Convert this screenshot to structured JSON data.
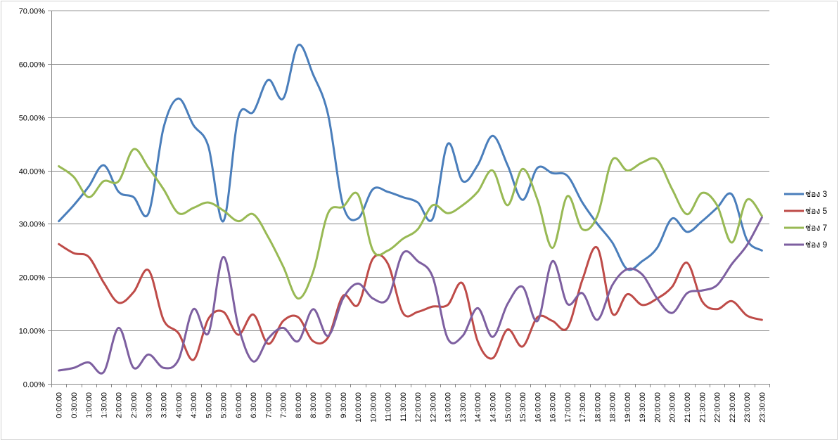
{
  "chart_data": {
    "type": "line",
    "title": "",
    "xlabel": "",
    "ylabel": "",
    "ylim": [
      0,
      0.7
    ],
    "y_ticks": [
      "0.00%",
      "10.00%",
      "20.00%",
      "30.00%",
      "40.00%",
      "50.00%",
      "60.00%",
      "70.00%"
    ],
    "grid": true,
    "legend_position": "right",
    "categories": [
      "0:00:00",
      "0:30:00",
      "1:00:00",
      "1:30:00",
      "2:00:00",
      "2:30:00",
      "3:00:00",
      "3:30:00",
      "4:00:00",
      "4:30:00",
      "5:00:00",
      "5:30:00",
      "6:00:00",
      "6:30:00",
      "7:00:00",
      "7:30:00",
      "8:00:00",
      "8:30:00",
      "9:00:00",
      "9:30:00",
      "10:00:00",
      "10:30:00",
      "11:00:00",
      "11:30:00",
      "12:00:00",
      "12:30:00",
      "13:00:00",
      "13:30:00",
      "14:00:00",
      "14:30:00",
      "15:00:00",
      "15:30:00",
      "16:00:00",
      "16:30:00",
      "17:00:00",
      "17:30:00",
      "18:00:00",
      "18:30:00",
      "19:00:00",
      "19:30:00",
      "20:00:00",
      "20:30:00",
      "21:00:00",
      "21:30:00",
      "22:00:00",
      "22:30:00",
      "23:00:00",
      "23:30:00"
    ],
    "series": [
      {
        "name": "ช่อง 3",
        "color": "#4a7ebb",
        "values": [
          0.305,
          0.335,
          0.37,
          0.41,
          0.36,
          0.35,
          0.32,
          0.48,
          0.535,
          0.485,
          0.445,
          0.305,
          0.5,
          0.51,
          0.57,
          0.535,
          0.635,
          0.58,
          0.505,
          0.335,
          0.31,
          0.365,
          0.36,
          0.35,
          0.34,
          0.31,
          0.45,
          0.38,
          0.41,
          0.465,
          0.41,
          0.345,
          0.405,
          0.395,
          0.39,
          0.34,
          0.3,
          0.265,
          0.215,
          0.23,
          0.255,
          0.31,
          0.285,
          0.305,
          0.33,
          0.355,
          0.27,
          0.25
        ]
      },
      {
        "name": "ช่อง 5",
        "color": "#be4b48",
        "values": [
          0.262,
          0.245,
          0.238,
          0.19,
          0.152,
          0.172,
          0.213,
          0.12,
          0.095,
          0.045,
          0.122,
          0.135,
          0.092,
          0.13,
          0.075,
          0.118,
          0.125,
          0.08,
          0.087,
          0.165,
          0.148,
          0.235,
          0.225,
          0.133,
          0.135,
          0.145,
          0.148,
          0.188,
          0.08,
          0.048,
          0.102,
          0.07,
          0.125,
          0.118,
          0.105,
          0.195,
          0.255,
          0.132,
          0.168,
          0.148,
          0.16,
          0.182,
          0.227,
          0.155,
          0.14,
          0.155,
          0.128,
          0.12
        ]
      },
      {
        "name": "ช่อง 7",
        "color": "#98b954",
        "values": [
          0.408,
          0.388,
          0.35,
          0.38,
          0.38,
          0.44,
          0.405,
          0.365,
          0.32,
          0.33,
          0.34,
          0.325,
          0.305,
          0.318,
          0.275,
          0.22,
          0.16,
          0.21,
          0.32,
          0.332,
          0.355,
          0.25,
          0.25,
          0.272,
          0.29,
          0.335,
          0.32,
          0.335,
          0.36,
          0.4,
          0.335,
          0.403,
          0.345,
          0.255,
          0.352,
          0.29,
          0.315,
          0.42,
          0.4,
          0.415,
          0.42,
          0.365,
          0.318,
          0.358,
          0.335,
          0.265,
          0.345,
          0.315
        ]
      },
      {
        "name": "ช่อง 9",
        "color": "#7d5fa0",
        "values": [
          0.025,
          0.03,
          0.04,
          0.022,
          0.105,
          0.03,
          0.055,
          0.03,
          0.045,
          0.14,
          0.095,
          0.238,
          0.108,
          0.042,
          0.085,
          0.105,
          0.08,
          0.14,
          0.09,
          0.16,
          0.188,
          0.16,
          0.16,
          0.245,
          0.23,
          0.2,
          0.085,
          0.09,
          0.142,
          0.088,
          0.15,
          0.182,
          0.118,
          0.23,
          0.15,
          0.17,
          0.12,
          0.185,
          0.215,
          0.205,
          0.16,
          0.133,
          0.17,
          0.175,
          0.185,
          0.225,
          0.26,
          0.312
        ]
      }
    ]
  }
}
